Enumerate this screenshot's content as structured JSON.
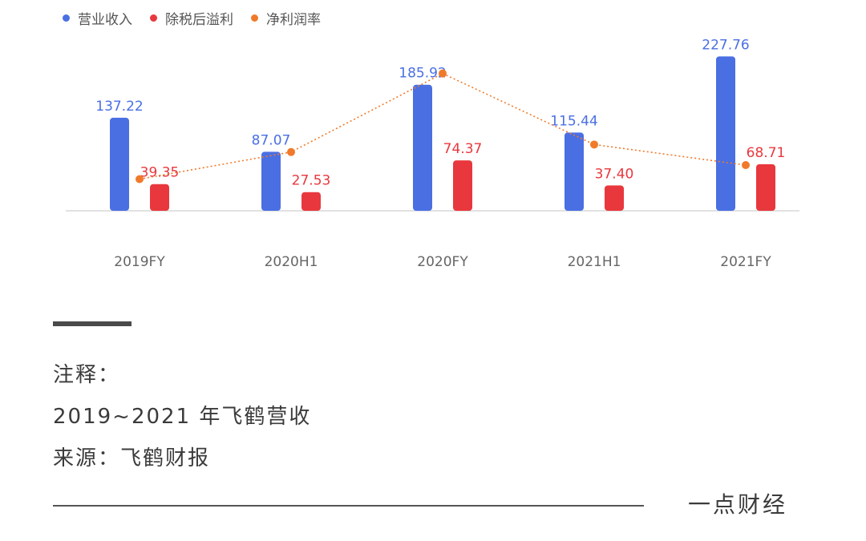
{
  "legend": {
    "items": [
      {
        "label": "营业收入",
        "color": "#4a6fe3"
      },
      {
        "label": "除税后溢利",
        "color": "#e8383d"
      },
      {
        "label": "净利润率",
        "color": "#f07a2a"
      }
    ]
  },
  "chart_data": {
    "type": "bar",
    "categories": [
      "2019FY",
      "2020H1",
      "2020FY",
      "2021H1",
      "2021FY"
    ],
    "series": [
      {
        "name": "营业收入",
        "type": "bar",
        "color": "#4a6fe3",
        "values": [
          137.22,
          87.07,
          185.92,
          115.44,
          227.76
        ],
        "labels": [
          "137.22",
          "87.07",
          "185.92",
          "115.44",
          "227.76"
        ]
      },
      {
        "name": "除税后溢利",
        "type": "bar",
        "color": "#e8383d",
        "values": [
          39.35,
          27.53,
          74.37,
          37.4,
          68.71
        ],
        "labels": [
          "39.35",
          "27.53",
          "74.37",
          "37.40",
          "68.71"
        ]
      },
      {
        "name": "净利润率",
        "type": "line",
        "color": "#f07a2a",
        "style": "dotted",
        "values": [
          28.7,
          31.6,
          40.0,
          32.4,
          30.2
        ]
      }
    ],
    "ylim": [
      0,
      240
    ],
    "grid": false,
    "legend_position": "top-left"
  },
  "notes": {
    "heading": "注释：",
    "line1": "2019~2021 年飞鹤营收",
    "line2": "来源：飞鹤财报"
  },
  "brand": "一点财经"
}
